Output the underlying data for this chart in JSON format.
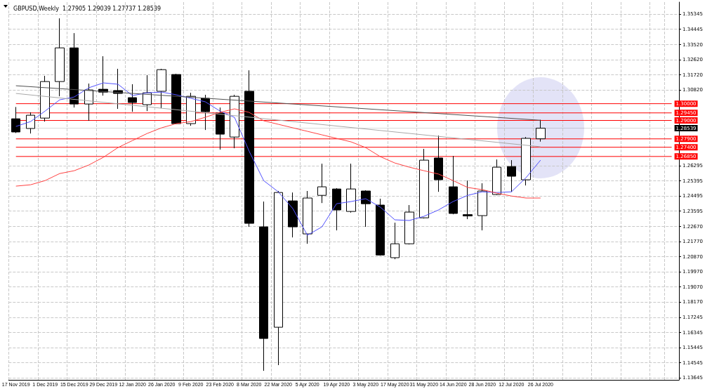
{
  "chart_data": {
    "type": "candlestick",
    "title": "GBPUSD,Weekly  1.27905 1.29039 1.27737 1.28539",
    "categories": [
      "17 Nov 2019",
      null,
      "1 Dec 2019",
      null,
      "15 Dec 2019",
      null,
      "29 Dec 2019",
      null,
      "12 Jan 2020",
      null,
      "26 Jan 2020",
      null,
      "9 Feb 2020",
      null,
      "23 Feb 2020",
      null,
      "8 Mar 2020",
      null,
      "22 Mar 2020",
      null,
      "5 Apr 2020",
      null,
      "19 Apr 2020",
      null,
      "3 May 2020",
      null,
      "17 May 2020",
      null,
      "31 May 2020",
      null,
      "14 Jun 2020",
      null,
      "28 Jun 2020",
      null,
      "12 Jul 2020",
      null,
      "26 Jul 2020"
    ],
    "ohlc": [
      [
        1.291,
        1.298,
        1.2825,
        1.2831
      ],
      [
        1.2852,
        1.2948,
        1.2822,
        1.2931
      ],
      [
        1.2914,
        1.3166,
        1.2893,
        1.3132
      ],
      [
        1.3132,
        1.3509,
        1.3044,
        1.3333
      ],
      [
        1.3333,
        1.3421,
        1.2977,
        1.2998
      ],
      [
        1.2998,
        1.312,
        1.2898,
        1.3082
      ],
      [
        1.3086,
        1.3283,
        1.3048,
        1.3069
      ],
      [
        1.3078,
        1.3208,
        1.2969,
        1.3061
      ],
      [
        1.3036,
        1.3116,
        1.2952,
        1.3007
      ],
      [
        1.2994,
        1.317,
        1.2956,
        1.3065
      ],
      [
        1.3074,
        1.3208,
        1.2973,
        1.3203
      ],
      [
        1.3174,
        1.3178,
        1.2877,
        1.2881
      ],
      [
        1.2881,
        1.3065,
        1.2868,
        1.3044
      ],
      [
        1.3032,
        1.3053,
        1.2843,
        1.2952
      ],
      [
        1.2944,
        1.2977,
        1.2726,
        1.2818
      ],
      [
        1.2801,
        1.3053,
        1.2734,
        1.3044
      ],
      [
        1.3074,
        1.3199,
        1.2265,
        1.2286
      ],
      [
        1.2265,
        1.2416,
        1.1406,
        1.1599
      ],
      [
        1.1666,
        1.2479,
        1.144,
        1.247
      ],
      [
        1.242,
        1.247,
        1.2202,
        1.2265
      ],
      [
        1.2223,
        1.2479,
        1.2164,
        1.2437
      ],
      [
        1.2453,
        1.2642,
        1.2407,
        1.2504
      ],
      [
        1.2491,
        1.2496,
        1.2244,
        1.2366
      ],
      [
        1.2357,
        1.2642,
        1.235,
        1.2491
      ],
      [
        1.2479,
        1.2483,
        1.2265,
        1.2403
      ],
      [
        1.2395,
        1.2433,
        1.2093,
        1.2097
      ],
      [
        1.2081,
        1.229,
        1.2072,
        1.2164
      ],
      [
        1.2164,
        1.2395,
        1.216,
        1.2353
      ],
      [
        1.2319,
        1.273,
        1.2315,
        1.2663
      ],
      [
        1.2676,
        1.281,
        1.2474,
        1.2546
      ],
      [
        1.2504,
        1.2688,
        1.234,
        1.2345
      ],
      [
        1.2338,
        1.2541,
        1.2311,
        1.233
      ],
      [
        1.2332,
        1.2525,
        1.2244,
        1.2479
      ],
      [
        1.2458,
        1.2667,
        1.2455,
        1.2621
      ],
      [
        1.2625,
        1.2663,
        1.2474,
        1.2567
      ],
      [
        1.2546,
        1.2801,
        1.2512,
        1.2793
      ],
      [
        1.27905,
        1.29039,
        1.27737,
        1.28539
      ]
    ],
    "series": [
      {
        "type": "line",
        "color": "#5050ff",
        "values": [
          1.2864,
          1.2893,
          1.2956,
          1.3023,
          1.304,
          1.3095,
          1.3124,
          1.3116,
          1.3048,
          1.3065,
          1.3069,
          1.3053,
          1.3032,
          1.3011,
          1.2956,
          1.2918,
          1.2717,
          1.2541,
          1.2474,
          1.2374,
          1.2215,
          1.2265,
          1.2403,
          1.2416,
          1.2433,
          1.2383,
          1.2307,
          1.2303,
          1.2328,
          1.2366,
          1.2416,
          1.2453,
          1.2474,
          1.247,
          1.2474,
          1.2558,
          1.2663
        ]
      },
      {
        "type": "line",
        "color": "#ff4040",
        "values": [
          1.2508,
          1.2516,
          1.2541,
          1.2583,
          1.26,
          1.2634,
          1.268,
          1.2738,
          1.278,
          1.2822,
          1.2856,
          1.2881,
          1.2893,
          1.2919,
          1.2948,
          1.2969,
          1.2948,
          1.2898,
          1.2877,
          1.2856,
          1.2835,
          1.2814,
          1.2793,
          1.2772,
          1.2738,
          1.2684,
          1.2646,
          1.2621,
          1.26,
          1.258,
          1.2541,
          1.25,
          1.2487,
          1.2466,
          1.2449,
          1.2437,
          1.2437
        ]
      },
      {
        "type": "line",
        "color": "#505050",
        "x": [
          "17 Nov 2019",
          "26 Jul 2020"
        ],
        "values": [
          1.3107,
          1.2901
        ]
      },
      {
        "type": "line",
        "color": "#a8a8a8",
        "x": [
          "17 Nov 2019",
          "26 Jul 2020"
        ],
        "values": [
          1.3061,
          1.2743
        ]
      }
    ],
    "ylim": [
      1.1352,
      1.3606
    ],
    "yticks": [
      1.35345,
      1.34445,
      {
        "value": 1.3352,
        "label": "1.33520"
      },
      {
        "value": 1.3262,
        "label": "1.32620"
      },
      {
        "value": 1.3172,
        "label": "1.31720"
      },
      {
        "value": 1.3082,
        "label": "1.30820"
      },
      1.26295,
      1.25395,
      1.24495,
      1.23595,
      {
        "value": 1.2267,
        "label": "1.22670"
      },
      {
        "value": 1.2177,
        "label": "1.21770"
      },
      {
        "value": 1.2087,
        "label": "1.20870"
      },
      {
        "value": 1.1997,
        "label": "1.19970"
      },
      {
        "value": 1.1907,
        "label": "1.19070"
      },
      {
        "value": 1.1817,
        "label": "1.18170"
      },
      1.17245,
      1.16345,
      1.15445,
      1.14545,
      1.13645
    ],
    "ref_lines": [
      {
        "axis": "y",
        "value": 1.3,
        "label": "1.30000",
        "color": "#ff0000"
      },
      {
        "axis": "y",
        "value": 1.2945,
        "label": "1.29450",
        "color": "#ff0000"
      },
      {
        "axis": "y",
        "value": 1.29,
        "label": "1.29000",
        "color": "#ff0000"
      },
      {
        "axis": "y",
        "value": 1.28539,
        "label": "1.28539",
        "color": "#000000"
      },
      {
        "axis": "y",
        "value": 1.279,
        "label": "1.27900",
        "color": "#ff0000"
      },
      {
        "axis": "y",
        "value": 1.274,
        "label": "1.27400",
        "color": "#ff0000"
      },
      {
        "axis": "y",
        "value": 1.2685,
        "label": "1.26850",
        "color": "#ff0000"
      }
    ],
    "grid": true
  }
}
